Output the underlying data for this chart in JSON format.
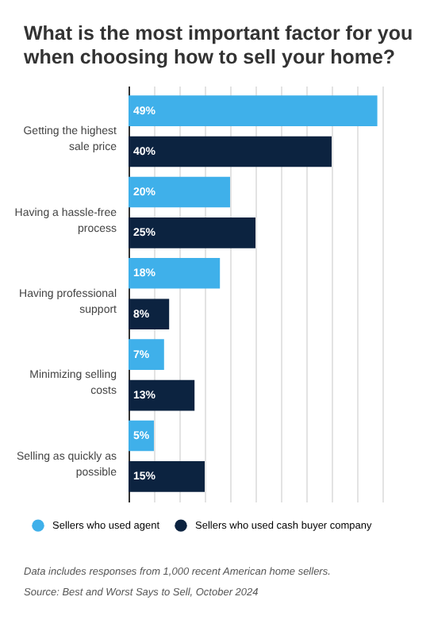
{
  "chart_data": {
    "type": "bar",
    "orientation": "horizontal",
    "title": "What is the most important factor for you when choosing how to sell your home?",
    "categories": [
      "Getting the highest sale price",
      "Having a hassle-free process",
      "Having professional support",
      "Minimizing selling costs",
      "Selling as quickly as possible"
    ],
    "series": [
      {
        "name": "Sellers who used agent",
        "color": "#3fb0ea",
        "values": [
          49,
          20,
          18,
          7,
          5
        ],
        "value_labels": [
          "49%",
          "20%",
          "18%",
          "7%",
          "5%"
        ]
      },
      {
        "name": "Sellers who used cash buyer company",
        "color": "#0c2340",
        "values": [
          40,
          25,
          8,
          13,
          15
        ],
        "value_labels": [
          "40%",
          "25%",
          "8%",
          "13%",
          "15%"
        ]
      }
    ],
    "tick_labels": "y",
    "grid": "x",
    "legend": "bottom",
    "annotations": [
      "Data includes responses from 1,000 recent American home sellers.",
      "Source: Best and Worst Says to Sell, October 2024"
    ]
  }
}
